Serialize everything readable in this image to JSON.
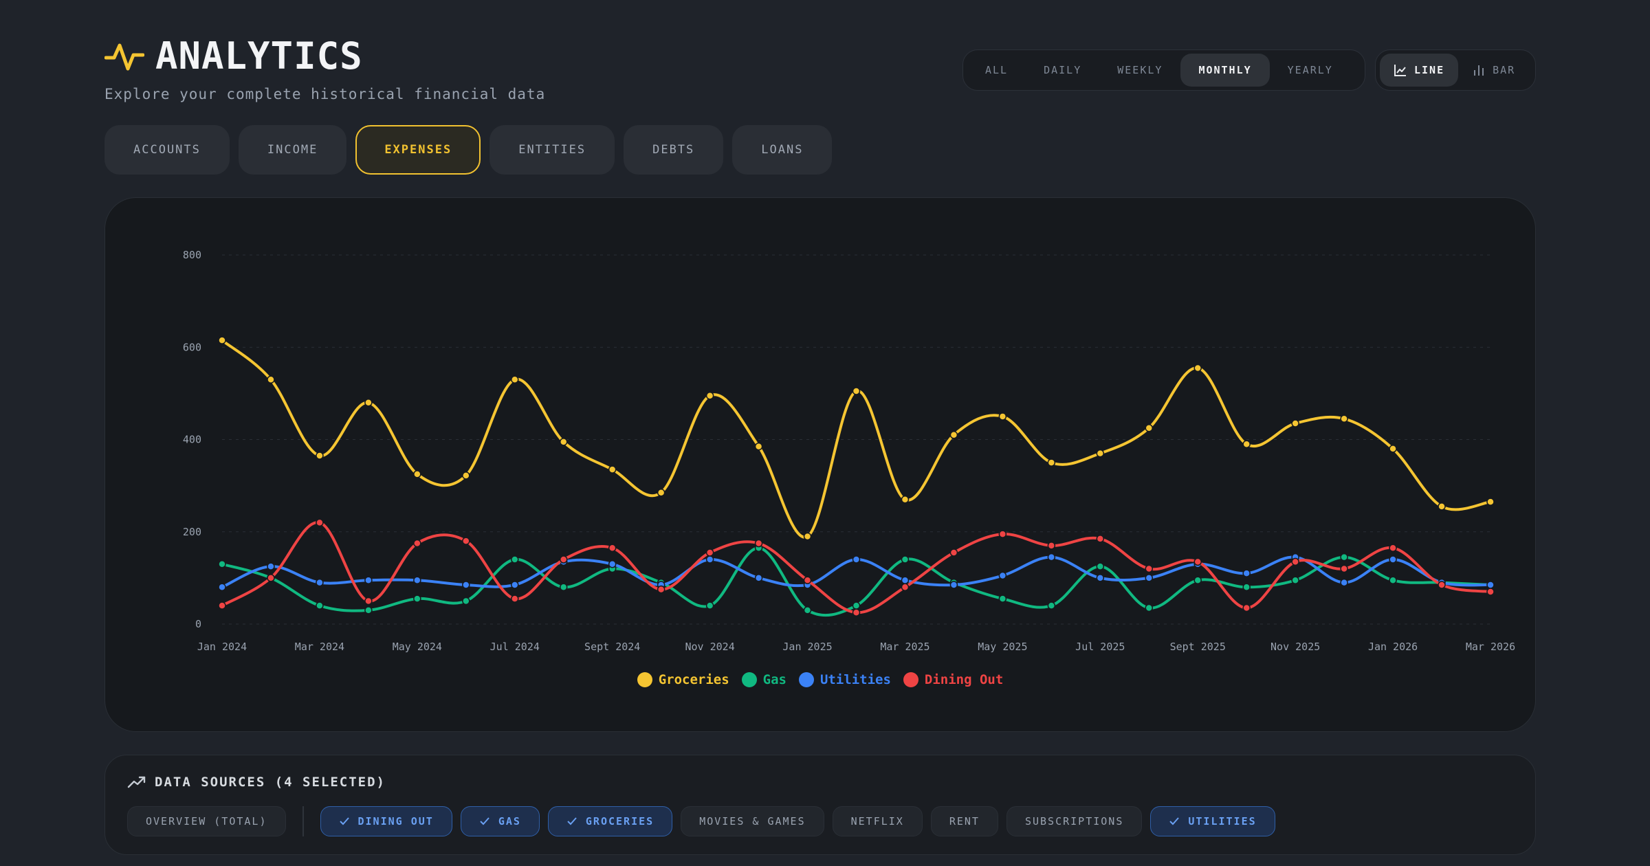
{
  "header": {
    "icon": "activity-icon",
    "title": "ANALYTICS",
    "subtitle": "Explore your complete historical financial data"
  },
  "range": {
    "options": [
      "ALL",
      "DAILY",
      "WEEKLY",
      "MONTHLY",
      "YEARLY"
    ],
    "selected": "MONTHLY"
  },
  "chart_type": {
    "line_label": "LINE",
    "bar_label": "BAR",
    "selected": "LINE"
  },
  "tabs": {
    "items": [
      "ACCOUNTS",
      "INCOME",
      "EXPENSES",
      "ENTITIES",
      "DEBTS",
      "LOANS"
    ],
    "selected": "EXPENSES"
  },
  "chart_data": {
    "type": "line",
    "title": "",
    "xlabel": "",
    "ylabel": "",
    "ylim": [
      0,
      800
    ],
    "yticks": [
      "0",
      "200",
      "400",
      "600",
      "800"
    ],
    "x": [
      "Jan 2024",
      "Feb 2024",
      "Mar 2024",
      "Apr 2024",
      "May 2024",
      "Jun 2024",
      "Jul 2024",
      "Aug 2024",
      "Sept 2024",
      "Oct 2024",
      "Nov 2024",
      "Dec 2024",
      "Jan 2025",
      "Feb 2025",
      "Mar 2025",
      "Apr 2025",
      "May 2025",
      "Jun 2025",
      "Jul 2025",
      "Aug 2025",
      "Sept 2025",
      "Oct 2025",
      "Nov 2025",
      "Dec 2025",
      "Jan 2026",
      "Feb 2026",
      "Mar 2026"
    ],
    "xtick_labels": [
      "Jan 2024",
      "Mar 2024",
      "May 2024",
      "Jul 2024",
      "Sept 2024",
      "Nov 2024",
      "Jan 2025",
      "Mar 2025",
      "May 2025",
      "Jul 2025",
      "Sept 2025",
      "Nov 2025",
      "Jan 2026",
      "Mar 2026"
    ],
    "grid": true,
    "legend_position": "bottom-center",
    "series": [
      {
        "name": "Groceries",
        "color": "#f5c532",
        "values": [
          615,
          530,
          365,
          480,
          325,
          322,
          530,
          395,
          335,
          285,
          495,
          385,
          190,
          505,
          270,
          410,
          450,
          350,
          370,
          425,
          555,
          390,
          435,
          445,
          380,
          255,
          265
        ]
      },
      {
        "name": "Gas",
        "color": "#10b981",
        "values": [
          130,
          100,
          40,
          30,
          55,
          50,
          140,
          80,
          120,
          90,
          40,
          165,
          30,
          40,
          140,
          90,
          55,
          40,
          125,
          35,
          95,
          80,
          95,
          145,
          95,
          90,
          85
        ]
      },
      {
        "name": "Utilities",
        "color": "#3b82f6",
        "values": [
          80,
          125,
          90,
          95,
          95,
          85,
          85,
          135,
          130,
          85,
          140,
          100,
          85,
          140,
          95,
          85,
          105,
          145,
          100,
          100,
          130,
          110,
          145,
          90,
          140,
          90,
          85
        ]
      },
      {
        "name": "Dining Out",
        "color": "#ef4444",
        "values": [
          40,
          100,
          220,
          50,
          175,
          180,
          55,
          140,
          165,
          75,
          155,
          175,
          95,
          25,
          80,
          155,
          195,
          170,
          185,
          120,
          135,
          35,
          135,
          120,
          165,
          85,
          70
        ]
      }
    ]
  },
  "data_sources": {
    "icon": "trending-up-icon",
    "title": "DATA SOURCES (4 SELECTED)",
    "overview_label": "OVERVIEW (TOTAL)",
    "items": [
      {
        "label": "DINING OUT",
        "selected": true
      },
      {
        "label": "GAS",
        "selected": true
      },
      {
        "label": "GROCERIES",
        "selected": true
      },
      {
        "label": "MOVIES & GAMES",
        "selected": false
      },
      {
        "label": "NETFLIX",
        "selected": false
      },
      {
        "label": "RENT",
        "selected": false
      },
      {
        "label": "SUBSCRIPTIONS",
        "selected": false
      },
      {
        "label": "UTILITIES",
        "selected": true
      }
    ]
  }
}
